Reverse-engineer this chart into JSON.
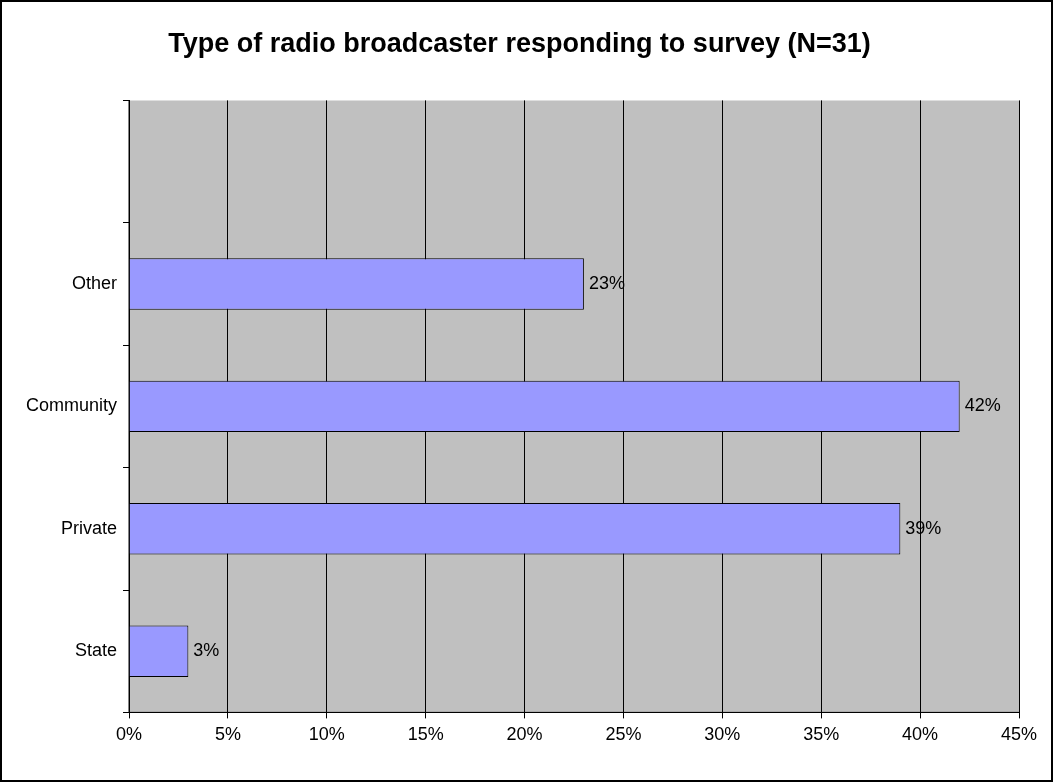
{
  "chart_data": {
    "type": "bar",
    "orientation": "horizontal",
    "title": "Type of radio broadcaster responding to survey (N=31)",
    "categories": [
      null,
      "Other",
      "Community",
      "Private",
      "State"
    ],
    "values": [
      null,
      23,
      42,
      39,
      3
    ],
    "value_labels": [
      null,
      "23%",
      "42%",
      "39%",
      "3%"
    ],
    "color": "#9999ff",
    "xlim": [
      0,
      45
    ],
    "xticks": [
      {
        "value": 0,
        "label": "0%"
      },
      {
        "value": 5,
        "label": "5%"
      },
      {
        "value": 10,
        "label": "10%"
      },
      {
        "value": 15,
        "label": "15%"
      },
      {
        "value": 20,
        "label": "20%"
      },
      {
        "value": 25,
        "label": "25%"
      },
      {
        "value": 30,
        "label": "30%"
      },
      {
        "value": 35,
        "label": "35%"
      },
      {
        "value": 40,
        "label": "40%"
      },
      {
        "value": 45,
        "label": "45%"
      }
    ],
    "grid": "x",
    "legend": false
  }
}
